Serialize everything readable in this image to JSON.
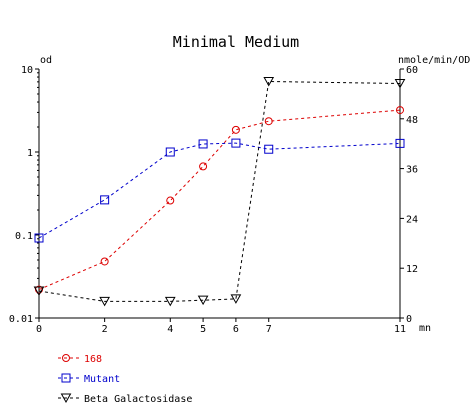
{
  "chart_data": {
    "type": "line",
    "title": "Minimal Medium",
    "left_axis_label": "od",
    "right_axis_label": "nmole/min/OD",
    "x_axis_label": "mn",
    "x_ticks": [
      0,
      2,
      4,
      5,
      6,
      7,
      11
    ],
    "xlim": [
      0,
      11
    ],
    "left_axis": {
      "scale": "log",
      "range": [
        0.01,
        10
      ],
      "ticks": [
        "0.01",
        "0.1",
        "1",
        "10"
      ]
    },
    "right_axis": {
      "scale": "linear",
      "range": [
        0,
        60
      ],
      "ticks": [
        "0",
        "12",
        "24",
        "36",
        "48",
        "60"
      ]
    },
    "grid": false,
    "legend_position": "bottom-left",
    "series": [
      {
        "name": "168",
        "axis": "left",
        "color": "#dd0000",
        "marker": "circle",
        "x": [
          0,
          2,
          4,
          5,
          6,
          7,
          11
        ],
        "y": [
          0.022,
          0.048,
          0.26,
          0.67,
          1.85,
          2.35,
          3.2
        ]
      },
      {
        "name": "Mutant",
        "axis": "left",
        "color": "#0000cc",
        "marker": "square",
        "x": [
          0,
          2,
          4,
          5,
          6,
          7,
          11
        ],
        "y": [
          0.092,
          0.265,
          1.0,
          1.25,
          1.28,
          1.08,
          1.27
        ]
      },
      {
        "name": "Beta Galactosidase",
        "axis": "right",
        "color": "#000000",
        "marker": "triangle-down",
        "x": [
          0,
          2,
          4,
          5,
          6,
          7,
          11
        ],
        "y": [
          6.5,
          4.0,
          4.0,
          4.3,
          4.6,
          57.0,
          56.5
        ]
      }
    ]
  }
}
